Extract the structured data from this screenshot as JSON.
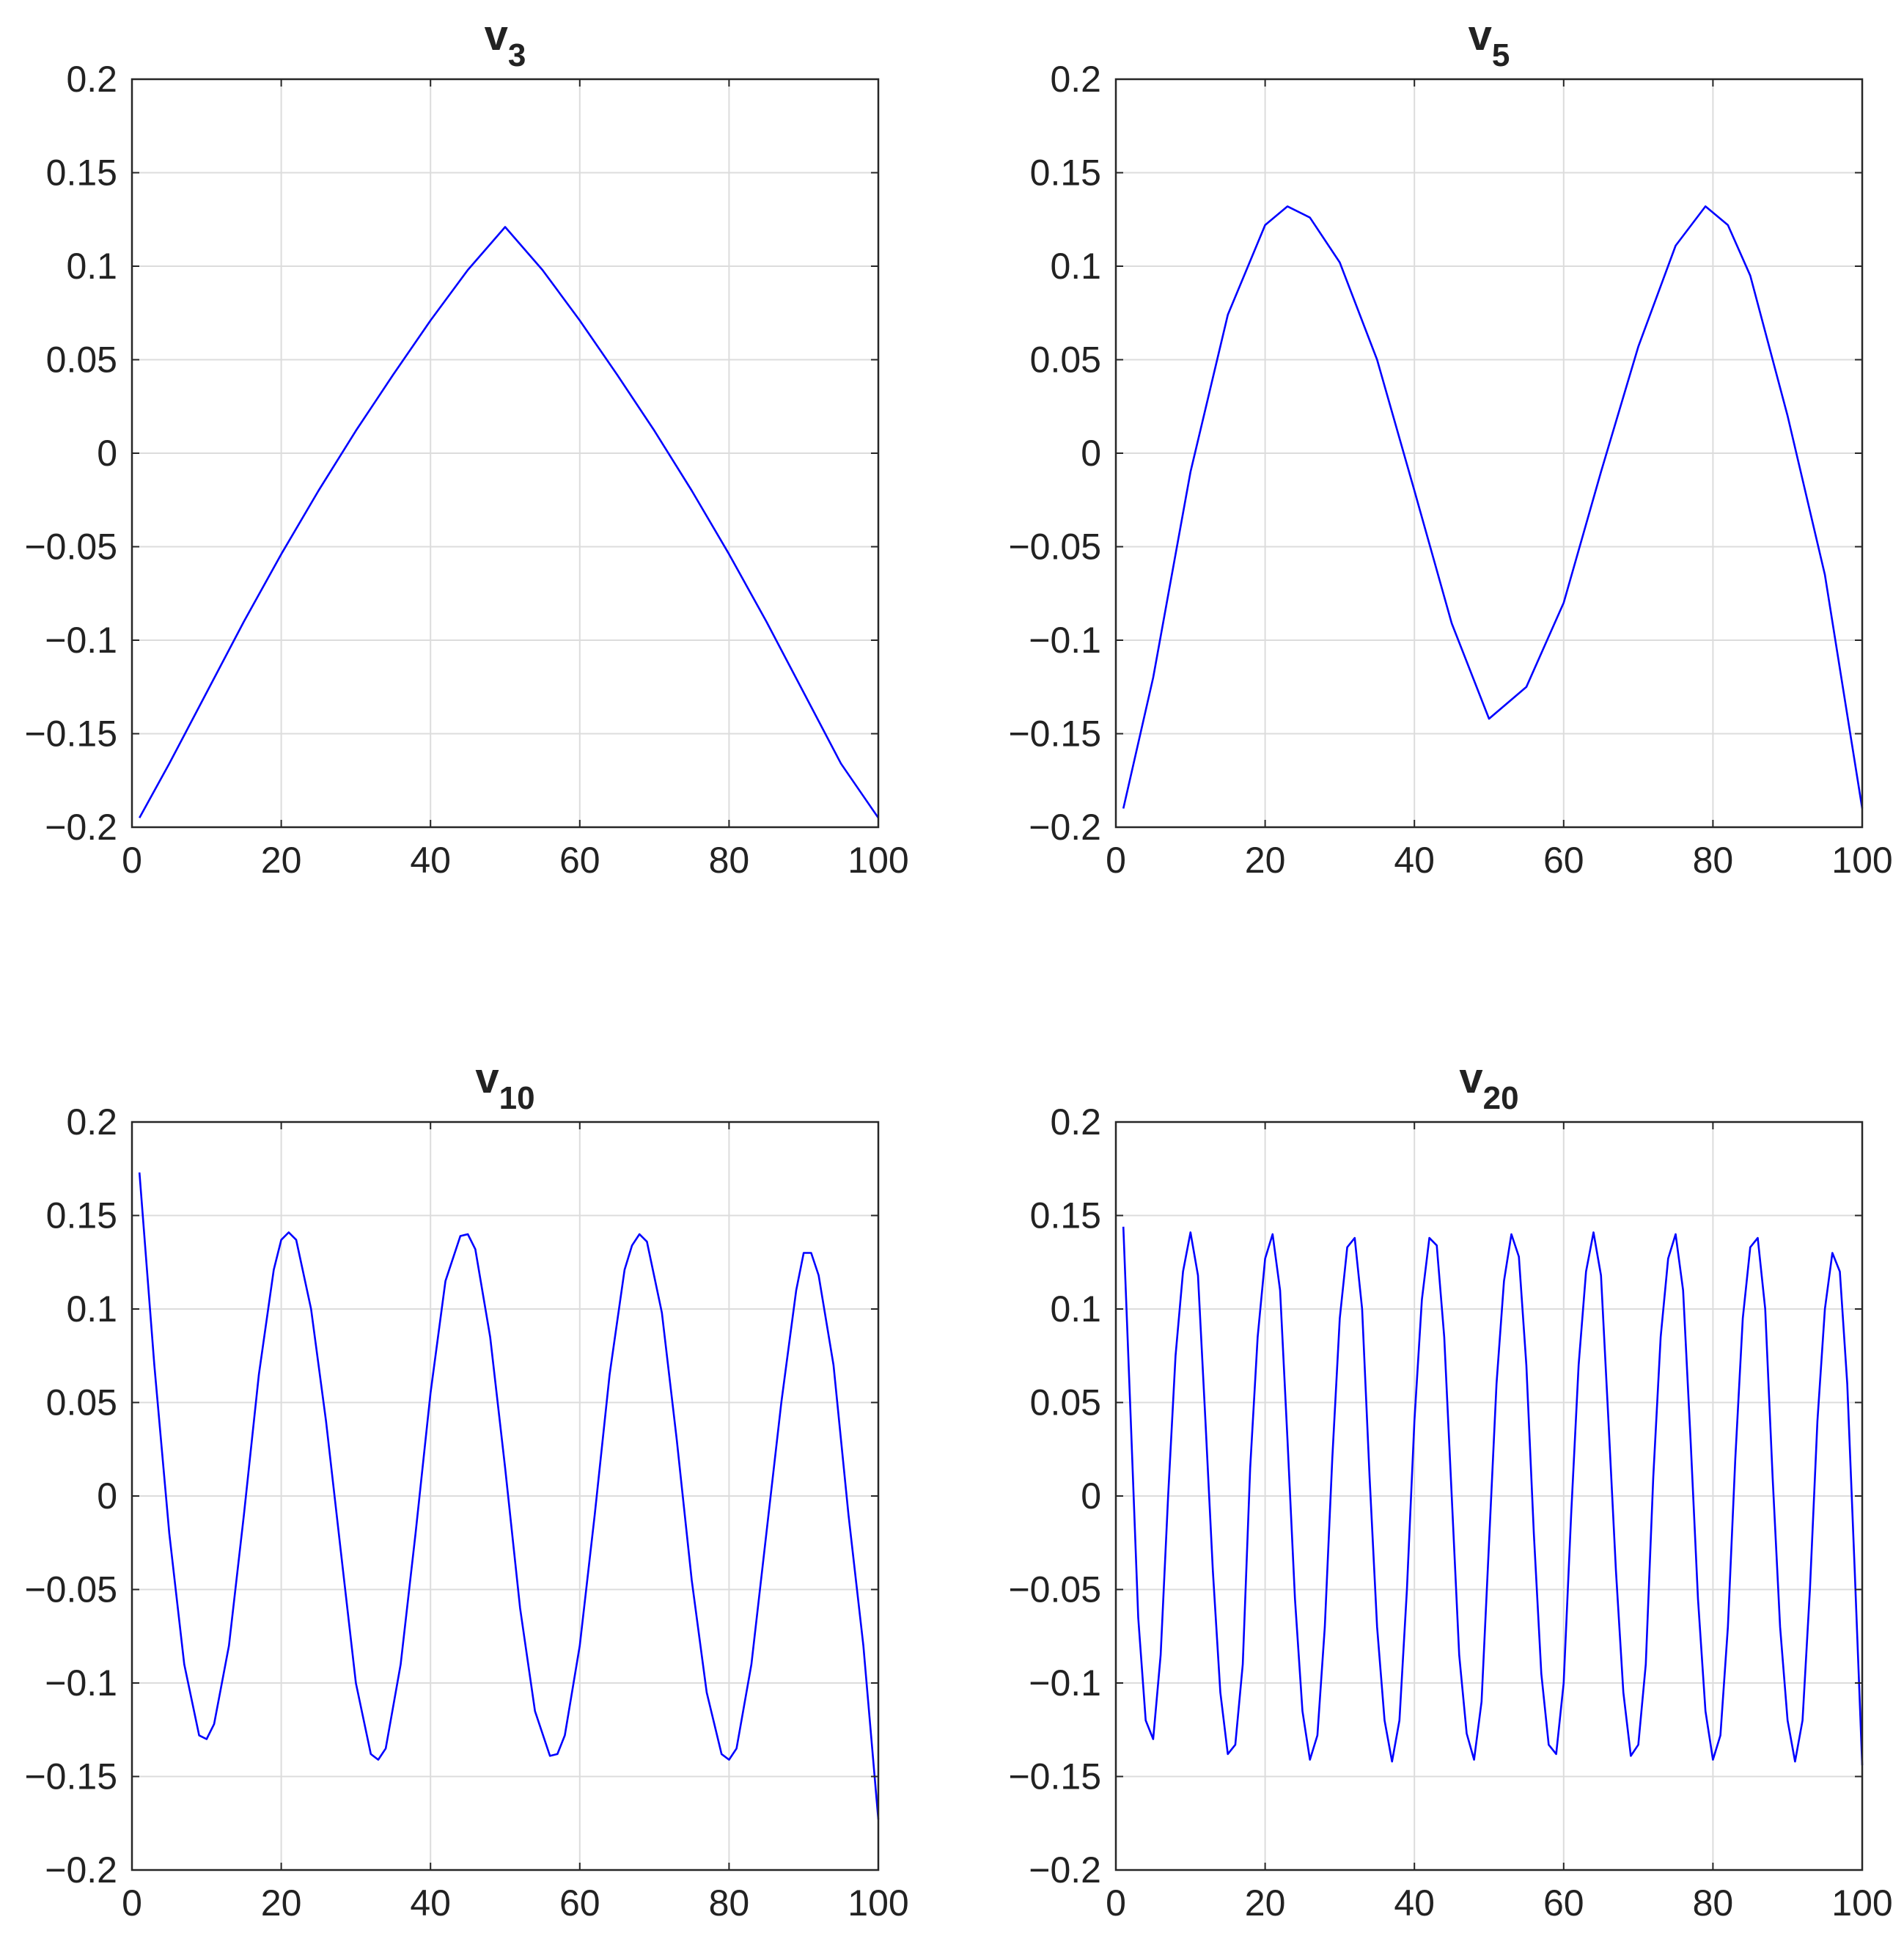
{
  "figure": {
    "line_color": "#0000ff",
    "grid_color": "#dcdcdc",
    "axis_color": "#262626",
    "text_color": "#222222"
  },
  "chart_data": [
    {
      "type": "line",
      "title": "v",
      "title_subscript": "3",
      "xlim": [
        0,
        100
      ],
      "ylim": [
        -0.2,
        0.2
      ],
      "xticks": [
        0,
        20,
        40,
        60,
        80,
        100
      ],
      "xtick_labels": [
        "0",
        "20",
        "40",
        "60",
        "80",
        "100"
      ],
      "yticks": [
        -0.2,
        -0.15,
        -0.1,
        -0.05,
        0,
        0.05,
        0.1,
        0.15,
        0.2
      ],
      "ytick_labels": [
        "−0.2",
        "−0.15",
        "−0.1",
        "−0.05",
        "0",
        "0.05",
        "0.1",
        "0.15",
        "0.2"
      ],
      "grid": true,
      "series": [
        {
          "color": "#0000ff",
          "x": [
            1,
            5,
            10,
            15,
            20,
            25,
            30,
            35,
            40,
            45,
            50,
            55,
            60,
            65,
            70,
            75,
            80,
            85,
            90,
            95,
            100
          ],
          "y": [
            -0.195,
            -0.166,
            -0.128,
            -0.09,
            -0.054,
            -0.02,
            0.012,
            0.042,
            0.071,
            0.098,
            0.121,
            0.098,
            0.071,
            0.042,
            0.012,
            -0.02,
            -0.054,
            -0.09,
            -0.128,
            -0.166,
            -0.195
          ]
        }
      ]
    },
    {
      "type": "line",
      "title": "v",
      "title_subscript": "5",
      "xlim": [
        0,
        100
      ],
      "ylim": [
        -0.2,
        0.2
      ],
      "xticks": [
        0,
        20,
        40,
        60,
        80,
        100
      ],
      "xtick_labels": [
        "0",
        "20",
        "40",
        "60",
        "80",
        "100"
      ],
      "yticks": [
        -0.2,
        -0.15,
        -0.1,
        -0.05,
        0,
        0.05,
        0.1,
        0.15,
        0.2
      ],
      "ytick_labels": [
        "−0.2",
        "−0.15",
        "−0.1",
        "−0.05",
        "0",
        "0.05",
        "0.1",
        "0.15",
        "0.2"
      ],
      "grid": true,
      "series": [
        {
          "color": "#0000ff",
          "x": [
            1,
            5,
            10,
            15,
            20,
            23,
            26,
            30,
            35,
            40,
            45,
            50,
            55,
            60,
            65,
            70,
            75,
            79,
            82,
            85,
            90,
            95,
            100
          ],
          "y": [
            -0.19,
            -0.12,
            -0.01,
            0.074,
            0.122,
            0.132,
            0.126,
            0.102,
            0.05,
            -0.02,
            -0.091,
            -0.142,
            -0.125,
            -0.08,
            -0.01,
            0.057,
            0.111,
            0.132,
            0.122,
            0.095,
            0.02,
            -0.065,
            -0.19
          ]
        }
      ]
    },
    {
      "type": "line",
      "title": "v",
      "title_subscript": "10",
      "xlim": [
        0,
        100
      ],
      "ylim": [
        -0.2,
        0.2
      ],
      "xticks": [
        0,
        20,
        40,
        60,
        80,
        100
      ],
      "xtick_labels": [
        "0",
        "20",
        "40",
        "60",
        "80",
        "100"
      ],
      "yticks": [
        -0.2,
        -0.15,
        -0.1,
        -0.05,
        0,
        0.05,
        0.1,
        0.15,
        0.2
      ],
      "ytick_labels": [
        "−0.2",
        "−0.15",
        "−0.1",
        "−0.05",
        "0",
        "0.05",
        "0.1",
        "0.15",
        "0.2"
      ],
      "grid": true,
      "series": [
        {
          "color": "#0000ff",
          "x": [
            1,
            3,
            5,
            7,
            9,
            10,
            11,
            13,
            15,
            17,
            19,
            20,
            21,
            22,
            24,
            26,
            28,
            30,
            32,
            33,
            34,
            36,
            38,
            40,
            42,
            44,
            45,
            46,
            48,
            50,
            52,
            54,
            56,
            57,
            58,
            60,
            62,
            64,
            66,
            67,
            68,
            69,
            71,
            73,
            75,
            77,
            79,
            80,
            81,
            83,
            85,
            87,
            89,
            90,
            91,
            92,
            94,
            96,
            98,
            100
          ],
          "y": [
            0.173,
            0.07,
            -0.02,
            -0.09,
            -0.128,
            -0.13,
            -0.122,
            -0.08,
            -0.01,
            0.065,
            0.121,
            0.137,
            0.141,
            0.137,
            0.1,
            0.04,
            -0.03,
            -0.1,
            -0.138,
            -0.141,
            -0.135,
            -0.09,
            -0.02,
            0.055,
            0.115,
            0.139,
            0.14,
            0.132,
            0.085,
            0.015,
            -0.06,
            -0.115,
            -0.139,
            -0.138,
            -0.128,
            -0.08,
            -0.01,
            0.065,
            0.121,
            0.134,
            0.14,
            0.136,
            0.098,
            0.03,
            -0.045,
            -0.105,
            -0.138,
            -0.141,
            -0.135,
            -0.09,
            -0.02,
            0.05,
            0.11,
            0.13,
            0.13,
            0.118,
            0.07,
            -0.01,
            -0.08,
            -0.173
          ]
        }
      ]
    },
    {
      "type": "line",
      "title": "v",
      "title_subscript": "20",
      "xlim": [
        0,
        100
      ],
      "ylim": [
        -0.2,
        0.2
      ],
      "xticks": [
        0,
        20,
        40,
        60,
        80,
        100
      ],
      "xtick_labels": [
        "0",
        "20",
        "40",
        "60",
        "80",
        "100"
      ],
      "yticks": [
        -0.2,
        -0.15,
        -0.1,
        -0.05,
        0,
        0.05,
        0.1,
        0.15,
        0.2
      ],
      "ytick_labels": [
        "−0.2",
        "−0.15",
        "−0.1",
        "−0.05",
        "0",
        "0.05",
        "0.1",
        "0.15",
        "0.2"
      ],
      "grid": true,
      "series": [
        {
          "color": "#0000ff",
          "x": [
            1,
            2,
            3,
            4,
            5,
            6,
            7,
            8,
            9,
            10,
            11,
            12,
            13,
            14,
            15,
            16,
            17,
            18,
            19,
            20,
            21,
            22,
            23,
            24,
            25,
            26,
            27,
            28,
            29,
            30,
            31,
            32,
            33,
            34,
            35,
            36,
            37,
            38,
            39,
            40,
            41,
            42,
            43,
            44,
            45,
            46,
            47,
            48,
            49,
            50,
            51,
            52,
            53,
            54,
            55,
            56,
            57,
            58,
            59,
            60,
            61,
            62,
            63,
            64,
            65,
            66,
            67,
            68,
            69,
            70,
            71,
            72,
            73,
            74,
            75,
            76,
            77,
            78,
            79,
            80,
            81,
            82,
            83,
            84,
            85,
            86,
            87,
            88,
            89,
            90,
            91,
            92,
            93,
            94,
            95,
            96,
            97,
            98,
            99,
            100
          ],
          "y": [
            0.144,
            0.04,
            -0.065,
            -0.12,
            -0.13,
            -0.085,
            0.0,
            0.075,
            0.12,
            0.141,
            0.118,
            0.04,
            -0.04,
            -0.105,
            -0.138,
            -0.133,
            -0.09,
            0.015,
            0.085,
            0.127,
            0.14,
            0.11,
            0.03,
            -0.055,
            -0.115,
            -0.141,
            -0.128,
            -0.07,
            0.02,
            0.095,
            0.133,
            0.138,
            0.1,
            0.01,
            -0.07,
            -0.12,
            -0.142,
            -0.12,
            -0.05,
            0.04,
            0.105,
            0.138,
            0.134,
            0.085,
            0.0,
            -0.085,
            -0.127,
            -0.141,
            -0.11,
            -0.025,
            0.06,
            0.115,
            0.14,
            0.128,
            0.07,
            -0.02,
            -0.095,
            -0.133,
            -0.138,
            -0.1,
            -0.01,
            0.07,
            0.12,
            0.141,
            0.118,
            0.04,
            -0.04,
            -0.105,
            -0.139,
            -0.133,
            -0.09,
            0.01,
            0.085,
            0.127,
            0.14,
            0.11,
            0.03,
            -0.055,
            -0.115,
            -0.141,
            -0.128,
            -0.07,
            0.02,
            0.095,
            0.133,
            0.138,
            0.1,
            0.01,
            -0.07,
            -0.12,
            -0.142,
            -0.12,
            -0.05,
            0.04,
            0.1,
            0.13,
            0.12,
            0.06,
            -0.04,
            -0.144
          ]
        }
      ]
    }
  ]
}
